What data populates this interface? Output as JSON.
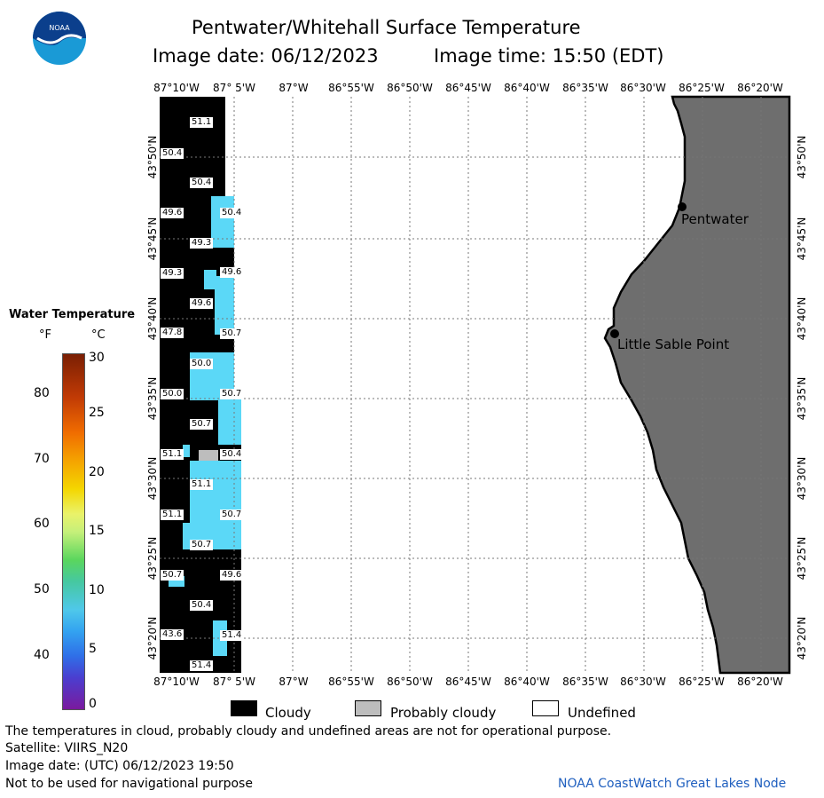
{
  "header": {
    "logo_text": "NOAA",
    "title": "Pentwater/Whitehall Surface Temperature",
    "image_date": "Image date: 06/12/2023",
    "image_time": "Image time: 15:50 (EDT)"
  },
  "axes": {
    "lon_labels": [
      "87°10'W",
      "87° 5'W",
      "87°W",
      "86°55'W",
      "86°50'W",
      "86°45'W",
      "86°40'W",
      "86°35'W",
      "86°30'W",
      "86°25'W",
      "86°20'W"
    ],
    "lat_labels": [
      "43°50'N",
      "43°45'N",
      "43°40'N",
      "43°35'N",
      "43°30'N",
      "43°25'N",
      "43°20'N"
    ]
  },
  "places": [
    {
      "name": "Pentwater"
    },
    {
      "name": "Little Sable Point"
    }
  ],
  "temp_labels": [
    "51.1",
    "50.4",
    "50.4",
    "49.6",
    "50.4",
    "49.3",
    "49.3",
    "49.6",
    "49.6",
    "47.8",
    "50.7",
    "50.0",
    "50.0",
    "50.7",
    "50.7",
    "51.1",
    "50.4",
    "51.1",
    "51.1",
    "50.7",
    "50.7",
    "50.7",
    "49.6",
    "50.4",
    "43.6",
    "51.4",
    "51.4"
  ],
  "colorbar": {
    "title": "Water Temperature",
    "unit_f": "°F",
    "unit_c": "°C",
    "f_ticks": [
      "80",
      "70",
      "60",
      "50",
      "40"
    ],
    "c_ticks": [
      "30",
      "25",
      "20",
      "15",
      "10",
      "5",
      "0"
    ]
  },
  "legend": {
    "cloudy": "Cloudy",
    "probably_cloudy": "Probably cloudy",
    "undefined": "Undefined"
  },
  "footer": {
    "disclaimer": "The temperatures in cloud, probably cloudy and undefined areas are not for operational purpose.",
    "satellite": "Satellite: VIIRS_N20",
    "utc_date": "Image date: (UTC) 06/12/2023  19:50",
    "nav": "Not to be used for navigational purpose",
    "credit": "NOAA CoastWatch Great Lakes Node"
  },
  "colors": {
    "cloud": "#000000",
    "land": "#6e6e6e",
    "water_cyan": "#5bd8f7",
    "probably_cloudy": "#bdbdbd",
    "grid": "#777777",
    "credit_blue": "#1f5fbf"
  }
}
